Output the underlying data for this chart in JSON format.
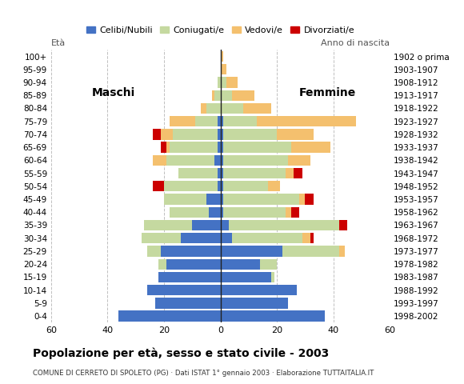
{
  "age_groups": [
    "0-4",
    "5-9",
    "10-14",
    "15-19",
    "20-24",
    "25-29",
    "30-34",
    "35-39",
    "40-44",
    "45-49",
    "50-54",
    "55-59",
    "60-64",
    "65-69",
    "70-74",
    "75-79",
    "80-84",
    "85-89",
    "90-94",
    "95-99",
    "100+"
  ],
  "birth_years": [
    "1998-2002",
    "1993-1997",
    "1988-1992",
    "1983-1987",
    "1978-1982",
    "1973-1977",
    "1968-1972",
    "1963-1967",
    "1958-1962",
    "1953-1957",
    "1948-1952",
    "1943-1947",
    "1938-1942",
    "1933-1937",
    "1928-1932",
    "1923-1927",
    "1918-1922",
    "1913-1917",
    "1908-1912",
    "1903-1907",
    "1902 o prima"
  ],
  "colors": {
    "celibe": "#4472c4",
    "coniugato": "#c5d9a0",
    "vedovo": "#f4c06e",
    "divorziato": "#cc0000"
  },
  "males": {
    "celibe": [
      36,
      23,
      26,
      22,
      19,
      21,
      14,
      10,
      4,
      5,
      1,
      1,
      2,
      1,
      1,
      1,
      0,
      0,
      0,
      0,
      0
    ],
    "coniugato": [
      0,
      0,
      0,
      0,
      3,
      5,
      14,
      17,
      14,
      15,
      19,
      14,
      17,
      17,
      16,
      8,
      5,
      2,
      1,
      0,
      0
    ],
    "vedovo": [
      0,
      0,
      0,
      0,
      0,
      0,
      0,
      0,
      0,
      0,
      0,
      0,
      5,
      1,
      4,
      9,
      2,
      1,
      0,
      0,
      0
    ],
    "divorziato": [
      0,
      0,
      0,
      0,
      0,
      0,
      0,
      0,
      0,
      0,
      4,
      0,
      0,
      2,
      3,
      0,
      0,
      0,
      0,
      0,
      0
    ]
  },
  "females": {
    "celibe": [
      37,
      24,
      27,
      18,
      14,
      22,
      4,
      3,
      1,
      1,
      1,
      1,
      1,
      1,
      1,
      1,
      0,
      0,
      0,
      0,
      0
    ],
    "coniugato": [
      0,
      0,
      0,
      1,
      6,
      20,
      25,
      39,
      22,
      27,
      16,
      22,
      23,
      24,
      19,
      12,
      8,
      4,
      2,
      0,
      0
    ],
    "vedovo": [
      0,
      0,
      0,
      0,
      0,
      2,
      3,
      0,
      2,
      2,
      4,
      3,
      8,
      14,
      13,
      35,
      10,
      8,
      4,
      2,
      1
    ],
    "divorziato": [
      0,
      0,
      0,
      0,
      0,
      0,
      1,
      3,
      3,
      3,
      0,
      3,
      0,
      0,
      0,
      0,
      0,
      0,
      0,
      0,
      0
    ]
  },
  "title": "Popolazione per età, sesso e stato civile - 2003",
  "subtitle": "COMUNE DI CERRETO DI SPOLETO (PG) · Dati ISTAT 1° gennaio 2003 · Elaborazione TUTTAITALIA.IT",
  "label_left": "Maschi",
  "label_right": "Femmine",
  "ylabel_left": "Età",
  "ylabel_right": "Anno di nascita",
  "xlim": 60,
  "background": "#ffffff",
  "grid_color": "#c0c0c0"
}
